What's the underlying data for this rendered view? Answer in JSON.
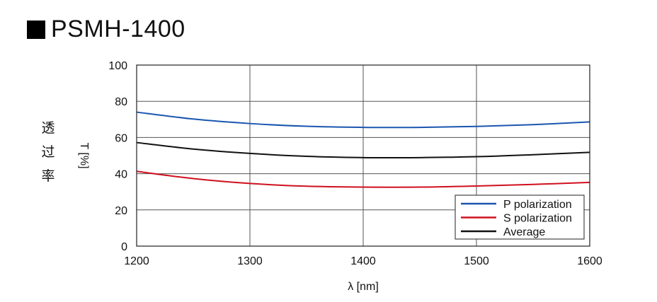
{
  "title": "PSMH-1400",
  "side_label_chars": [
    "透",
    "过",
    "率"
  ],
  "chart_data": {
    "type": "line",
    "title": "PSMH-1400",
    "xlabel": "λ [nm]",
    "ylabel": "T [%]",
    "xlim": [
      1200,
      1600
    ],
    "ylim": [
      0,
      100
    ],
    "xticks": [
      1200,
      1300,
      1400,
      1500,
      1600
    ],
    "yticks": [
      0,
      20,
      40,
      60,
      80,
      100
    ],
    "grid": true,
    "legend_position": "bottom-right",
    "x": [
      1200,
      1250,
      1300,
      1350,
      1400,
      1450,
      1500,
      1550,
      1600
    ],
    "series": [
      {
        "name": "P polarization",
        "color": "#1a56b0",
        "values": [
          74,
          70.2,
          67.7,
          66.2,
          65.6,
          65.6,
          66.1,
          67.1,
          68.6
        ]
      },
      {
        "name": "S polarization",
        "color": "#d0101e",
        "values": [
          41.3,
          37.3,
          34.6,
          33.1,
          32.6,
          32.6,
          33.2,
          34.1,
          35.2
        ]
      },
      {
        "name": "Average",
        "color": "#111111",
        "values": [
          57.2,
          53.6,
          51.2,
          49.6,
          48.9,
          48.9,
          49.4,
          50.5,
          51.8
        ]
      }
    ]
  }
}
